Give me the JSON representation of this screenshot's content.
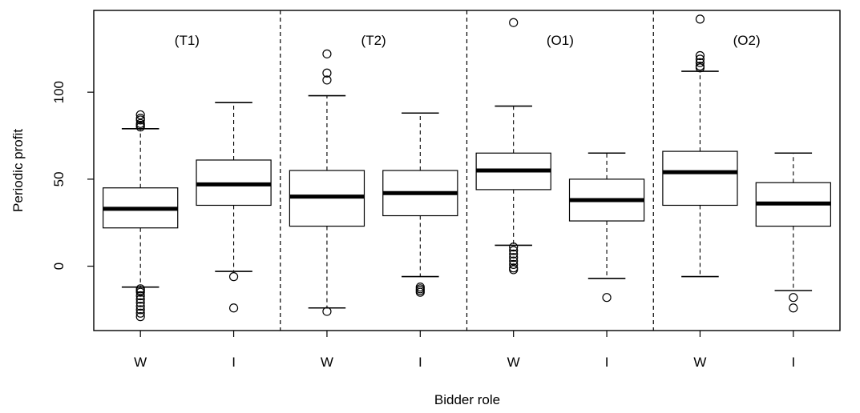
{
  "chart_data": {
    "type": "boxplot",
    "ylabel": "Periodic profit",
    "xlabel": "Bidder role",
    "ylim": [
      -37,
      147
    ],
    "yticks": [
      0,
      50,
      100
    ],
    "panels": [
      {
        "label": "(T1)",
        "boxes": [
          {
            "category": "W",
            "lower_whisker": -12,
            "q1": 22,
            "median": 33,
            "q3": 45,
            "upper_whisker": 79,
            "outliers": [
              80,
              81,
              82,
              84,
              85,
              87,
              -13,
              -14,
              -15,
              -17,
              -19,
              -21,
              -23,
              -25,
              -27,
              -29
            ]
          },
          {
            "category": "I",
            "lower_whisker": -3,
            "q1": 35,
            "median": 47,
            "q3": 61,
            "upper_whisker": 94,
            "outliers": [
              -6,
              -24
            ]
          }
        ]
      },
      {
        "label": "(T2)",
        "boxes": [
          {
            "category": "W",
            "lower_whisker": -24,
            "q1": 23,
            "median": 40,
            "q3": 55,
            "upper_whisker": 98,
            "outliers": [
              122,
              111,
              107,
              -26
            ]
          },
          {
            "category": "I",
            "lower_whisker": -6,
            "q1": 29,
            "median": 42,
            "q3": 55,
            "upper_whisker": 88,
            "outliers": [
              -12,
              -13,
              -14,
              -15
            ]
          }
        ]
      },
      {
        "label": "(O1)",
        "boxes": [
          {
            "category": "W",
            "lower_whisker": 12,
            "q1": 44,
            "median": 55,
            "q3": 65,
            "upper_whisker": 92,
            "outliers": [
              140,
              11,
              9,
              7,
              5,
              3,
              1,
              -1,
              -2
            ]
          },
          {
            "category": "I",
            "lower_whisker": -7,
            "q1": 26,
            "median": 38,
            "q3": 50,
            "upper_whisker": 65,
            "outliers": [
              -18
            ]
          }
        ]
      },
      {
        "label": "(O2)",
        "boxes": [
          {
            "category": "W",
            "lower_whisker": -6,
            "q1": 35,
            "median": 54,
            "q3": 66,
            "upper_whisker": 112,
            "outliers": [
              142,
              121,
              119,
              117,
              115,
              114
            ]
          },
          {
            "category": "I",
            "lower_whisker": -14,
            "q1": 23,
            "median": 36,
            "q3": 48,
            "upper_whisker": 65,
            "outliers": [
              -18,
              -24
            ]
          }
        ]
      }
    ]
  }
}
